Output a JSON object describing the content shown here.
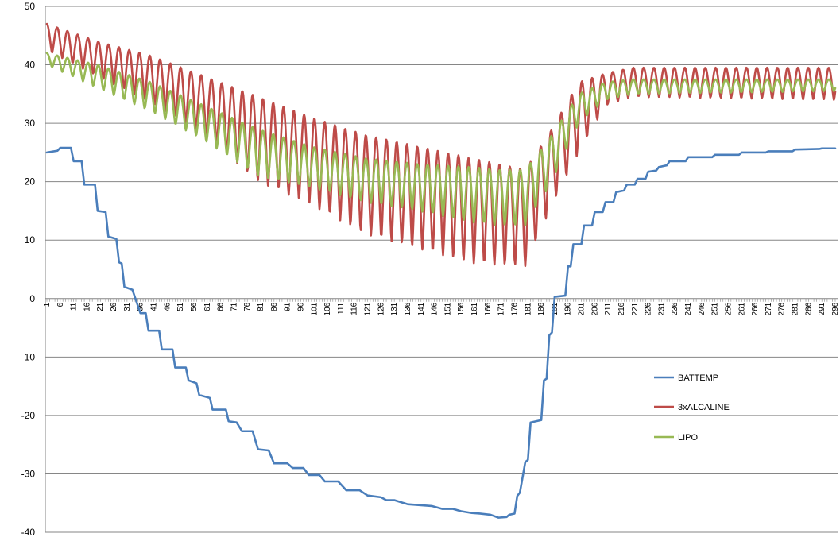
{
  "chart_data": {
    "type": "line",
    "title": "",
    "xlabel": "",
    "ylabel": "",
    "ylim": [
      -40,
      50
    ],
    "yticks": [
      "-40",
      "-30",
      "-20",
      "-10",
      "0",
      "10",
      "20",
      "30",
      "40",
      "50"
    ],
    "xlim": [
      1,
      296
    ],
    "xticks": [
      "1",
      "6",
      "11",
      "16",
      "21",
      "26",
      "31",
      "36",
      "41",
      "46",
      "51",
      "56",
      "61",
      "66",
      "71",
      "76",
      "81",
      "86",
      "91",
      "96",
      "101",
      "106",
      "111",
      "116",
      "121",
      "126",
      "131",
      "136",
      "141",
      "146",
      "151",
      "156",
      "161",
      "166",
      "171",
      "176",
      "181",
      "186",
      "191",
      "196",
      "201",
      "206",
      "211",
      "216",
      "221",
      "226",
      "231",
      "236",
      "241",
      "246",
      "251",
      "256",
      "261",
      "266",
      "271",
      "276",
      "281",
      "286",
      "291",
      "296"
    ],
    "grid": "horizontal",
    "legend_position": "right",
    "series": [
      {
        "name": "BATTEMP",
        "color": "#4a7ebb",
        "x": [
          1,
          5,
          6,
          10,
          11,
          14,
          15,
          19,
          20,
          23,
          24,
          27,
          28,
          29,
          30,
          33,
          36,
          38,
          39,
          43,
          44,
          48,
          49,
          53,
          54,
          57,
          58,
          62,
          63,
          68,
          69,
          72,
          74,
          78,
          80,
          84,
          86,
          91,
          93,
          97,
          99,
          103,
          105,
          110,
          113,
          118,
          121,
          126,
          128,
          131,
          136,
          145,
          149,
          153,
          156,
          160,
          163,
          167,
          170,
          173,
          174,
          176,
          177,
          178,
          180,
          181,
          182,
          186,
          187,
          188,
          189,
          190,
          191,
          195,
          196,
          197,
          198,
          201,
          202,
          205,
          206,
          209,
          210,
          213,
          214,
          217,
          218,
          221,
          222,
          225,
          226,
          229,
          230,
          233,
          234,
          240,
          241,
          250,
          251,
          260,
          261,
          270,
          271,
          280,
          281,
          290,
          291,
          296
        ],
        "values": [
          25,
          25.3,
          25.8,
          25.8,
          23.5,
          23.5,
          19.5,
          19.5,
          15,
          14.8,
          10.6,
          10.2,
          6.2,
          6,
          2,
          1.5,
          -2.5,
          -2.5,
          -5.5,
          -5.5,
          -8.7,
          -8.7,
          -11.8,
          -11.8,
          -14,
          -14.5,
          -16.5,
          -17,
          -19,
          -19,
          -21,
          -21.2,
          -22.7,
          -22.7,
          -25.8,
          -26,
          -28.2,
          -28.2,
          -29,
          -29,
          -30.2,
          -30.2,
          -31.3,
          -31.3,
          -32.8,
          -32.8,
          -33.7,
          -34,
          -34.5,
          -34.5,
          -35.2,
          -35.5,
          -36,
          -36,
          -36.4,
          -36.7,
          -36.8,
          -37,
          -37.5,
          -37.4,
          -37,
          -36.8,
          -33.8,
          -33.2,
          -28,
          -27.6,
          -21.2,
          -20.8,
          -14,
          -13.7,
          -6.3,
          -5.8,
          0.3,
          0.5,
          5.5,
          5.5,
          9.3,
          9.3,
          12.5,
          12.5,
          14.8,
          14.8,
          16.5,
          16.5,
          18.2,
          18.5,
          19.5,
          19.5,
          20.5,
          20.5,
          21.7,
          21.9,
          22.5,
          22.8,
          23.5,
          23.5,
          24.2,
          24.2,
          24.6,
          24.6,
          25,
          25,
          25.2,
          25.2,
          25.5,
          25.6,
          25.7,
          25.7
        ]
      },
      {
        "name": "3xALCALINE",
        "color": "#be4b48",
        "x": [
          1,
          20,
          40,
          60,
          80,
          100,
          120,
          140,
          160,
          170,
          180,
          190,
          200,
          210,
          220,
          296
        ],
        "max": [
          47,
          44,
          41.5,
          38,
          34.5,
          31,
          28,
          26,
          24,
          23,
          22,
          29,
          37,
          38.5,
          39.5,
          39.5
        ],
        "min": [
          42.5,
          38,
          33.5,
          28,
          20,
          16,
          11,
          8.5,
          6,
          5.7,
          5.5,
          16,
          25,
          33,
          34.5,
          34
        ],
        "period": 3.85
      },
      {
        "name": "LIPO",
        "color": "#98b954",
        "x": [
          1,
          20,
          40,
          60,
          80,
          100,
          120,
          140,
          160,
          170,
          180,
          190,
          200,
          210,
          220,
          296
        ],
        "max": [
          42,
          40,
          37,
          33,
          29,
          26,
          24,
          23,
          22.5,
          22,
          22,
          28,
          35,
          37,
          37.5,
          37.5
        ],
        "min": [
          40,
          36,
          32,
          27,
          21,
          19,
          16.5,
          15,
          13,
          12.5,
          12.5,
          20,
          30,
          34,
          35,
          35.5
        ],
        "period": 3.85
      }
    ]
  }
}
